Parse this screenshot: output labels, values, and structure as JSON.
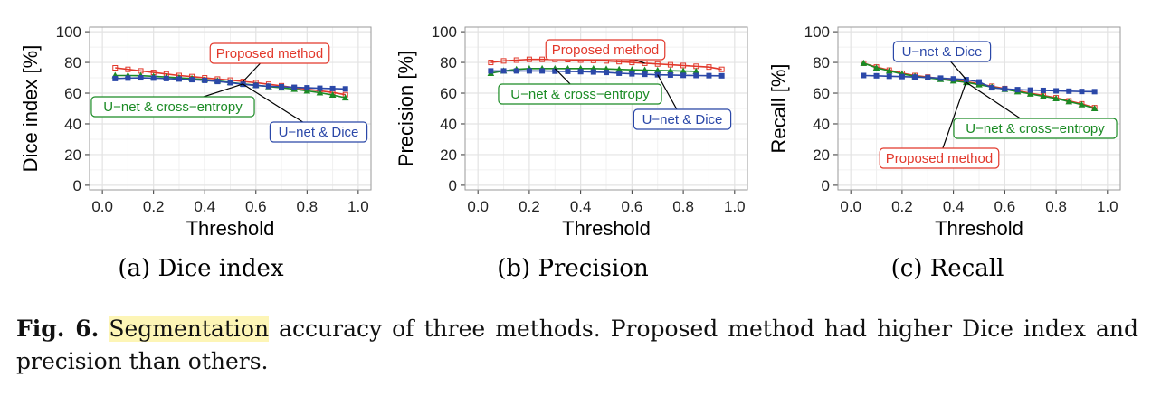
{
  "chart_data": [
    {
      "type": "line",
      "caption": "(a) Dice index",
      "xlabel": "Threshold",
      "ylabel": "Dice index [%]",
      "xlim": [
        -0.05,
        1.05
      ],
      "ylim": [
        -3,
        103
      ],
      "xticks": [
        "0.0",
        "0.2",
        "0.4",
        "0.6",
        "0.8",
        "1.0"
      ],
      "yticks": [
        "0",
        "20",
        "40",
        "60",
        "80",
        "100"
      ],
      "grid": true,
      "x": [
        0.05,
        0.1,
        0.15,
        0.2,
        0.25,
        0.3,
        0.35,
        0.4,
        0.45,
        0.5,
        0.55,
        0.6,
        0.65,
        0.7,
        0.75,
        0.8,
        0.85,
        0.9,
        0.95
      ],
      "series": [
        {
          "name": "Proposed method",
          "color": "#e2382b",
          "marker": "open-square",
          "values": [
            76.5,
            75.5,
            74.5,
            73.5,
            72.5,
            71.5,
            70.8,
            70.0,
            69.2,
            68.5,
            67.6,
            66.8,
            65.8,
            64.8,
            63.6,
            62.6,
            61.5,
            60.5,
            59.0
          ]
        },
        {
          "name": "U-net & cross-entropy",
          "color": "#1b8b25",
          "marker": "triangle",
          "values": [
            71.5,
            71.5,
            71.4,
            71.0,
            70.5,
            70.0,
            69.5,
            68.8,
            68.0,
            67.0,
            66.0,
            65.2,
            64.3,
            63.5,
            62.6,
            61.5,
            60.3,
            58.8,
            57.0
          ]
        },
        {
          "name": "U-net & Dice",
          "color": "#2b48a8",
          "marker": "square",
          "values": [
            69.5,
            69.8,
            70.0,
            69.8,
            69.5,
            69.2,
            68.8,
            68.3,
            67.6,
            66.8,
            65.8,
            65.0,
            64.5,
            64.2,
            63.8,
            63.5,
            63.2,
            63.0,
            62.8
          ]
        }
      ],
      "callouts": [
        {
          "text": "Proposed method",
          "series": 0
        },
        {
          "text": "U−net & cross−entropy",
          "series": 1
        },
        {
          "text": "U−net & Dice",
          "series": 2
        }
      ]
    },
    {
      "type": "line",
      "caption": "(b) Precision",
      "xlabel": "Threshold",
      "ylabel": "Precision [%]",
      "xlim": [
        -0.05,
        1.05
      ],
      "ylim": [
        -3,
        103
      ],
      "xticks": [
        "0.0",
        "0.2",
        "0.4",
        "0.6",
        "0.8",
        "1.0"
      ],
      "yticks": [
        "0",
        "20",
        "40",
        "60",
        "80",
        "100"
      ],
      "grid": true,
      "x": [
        0.05,
        0.1,
        0.15,
        0.2,
        0.25,
        0.3,
        0.35,
        0.4,
        0.45,
        0.5,
        0.55,
        0.6,
        0.65,
        0.7,
        0.75,
        0.8,
        0.85,
        0.9,
        0.95
      ],
      "series": [
        {
          "name": "Proposed method",
          "color": "#e2382b",
          "marker": "open-square",
          "values": [
            80.0,
            81.0,
            81.5,
            82.0,
            82.0,
            82.0,
            81.8,
            81.5,
            81.3,
            81.0,
            80.5,
            80.0,
            79.5,
            79.0,
            78.5,
            78.0,
            77.5,
            77.0,
            75.5
          ]
        },
        {
          "name": "U-net & cross-entropy",
          "color": "#1b8b25",
          "marker": "triangle",
          "values": [
            73.0,
            74.5,
            75.5,
            76.0,
            76.0,
            76.0,
            76.0,
            76.0,
            76.0,
            75.8,
            75.5,
            75.2,
            75.0,
            74.8,
            74.6,
            74.4,
            74.2,
            null,
            null
          ]
        },
        {
          "name": "U-net & Dice",
          "color": "#2b48a8",
          "marker": "square",
          "values": [
            74.5,
            74.5,
            74.5,
            74.5,
            74.5,
            74.3,
            74.2,
            74.0,
            73.8,
            73.5,
            73.0,
            72.6,
            72.3,
            72.0,
            71.8,
            71.6,
            71.5,
            71.4,
            71.3
          ]
        }
      ],
      "callouts": [
        {
          "text": "Proposed method",
          "series": 0
        },
        {
          "text": "U−net & cross−entropy",
          "series": 1
        },
        {
          "text": "U−net & Dice",
          "series": 2
        }
      ]
    },
    {
      "type": "line",
      "caption": "(c) Recall",
      "xlabel": "Threshold",
      "ylabel": "Recall [%]",
      "xlim": [
        -0.05,
        1.05
      ],
      "ylim": [
        -3,
        103
      ],
      "xticks": [
        "0.0",
        "0.2",
        "0.4",
        "0.6",
        "0.8",
        "1.0"
      ],
      "yticks": [
        "0",
        "20",
        "40",
        "60",
        "80",
        "100"
      ],
      "grid": true,
      "x": [
        0.05,
        0.1,
        0.15,
        0.2,
        0.25,
        0.3,
        0.35,
        0.4,
        0.45,
        0.5,
        0.55,
        0.6,
        0.65,
        0.7,
        0.75,
        0.8,
        0.85,
        0.9,
        0.95
      ],
      "series": [
        {
          "name": "Proposed method",
          "color": "#e2382b",
          "marker": "open-square",
          "values": [
            79.5,
            77.0,
            75.0,
            73.0,
            71.5,
            70.5,
            69.5,
            68.5,
            67.5,
            66.0,
            64.5,
            63.0,
            61.5,
            60.0,
            58.5,
            57.0,
            55.0,
            53.0,
            50.5
          ]
        },
        {
          "name": "U-net & cross-entropy",
          "color": "#1b8b25",
          "marker": "triangle",
          "values": [
            79.5,
            76.5,
            74.5,
            72.5,
            71.0,
            70.0,
            69.0,
            68.0,
            67.0,
            65.5,
            64.0,
            62.5,
            61.0,
            59.5,
            58.0,
            56.5,
            54.5,
            52.5,
            50.0
          ]
        },
        {
          "name": "U-net & Dice",
          "color": "#2b48a8",
          "marker": "square",
          "values": [
            71.5,
            71.3,
            71.0,
            70.8,
            70.5,
            70.2,
            69.8,
            69.3,
            68.8,
            67.3,
            63.5,
            62.8,
            62.3,
            62.0,
            61.8,
            61.5,
            61.3,
            61.1,
            61.0
          ]
        }
      ],
      "callouts": [
        {
          "text": "U−net & Dice",
          "series": 2
        },
        {
          "text": "U−net & cross−entropy",
          "series": 1
        },
        {
          "text": "Proposed method",
          "series": 0
        }
      ]
    }
  ],
  "caption": {
    "label": "Fig. 6.",
    "highlight": "Segmentation",
    "text": " accuracy of three methods. Proposed method had higher Dice index and precision than others."
  }
}
